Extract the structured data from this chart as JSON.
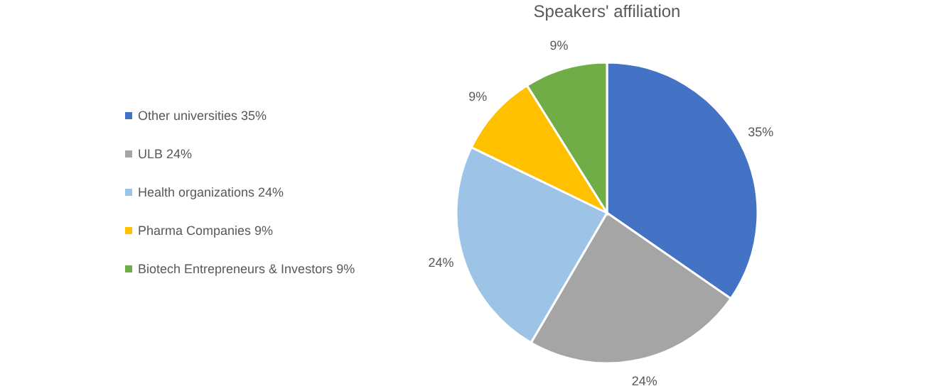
{
  "chart_data": {
    "type": "pie",
    "title": "Speakers' affiliation",
    "categories": [
      "Other universities 35%",
      "ULB  24%",
      "Health organizations  24%",
      "Pharma Companies  9%",
      "Biotech Entrepreneurs & Investors  9%"
    ],
    "values": [
      35,
      24,
      24,
      9,
      9
    ],
    "colors": [
      "#4472c4",
      "#a5a5a5",
      "#9dc3e6",
      "#ffc000",
      "#70ad47"
    ],
    "value_labels": [
      "35%",
      "24%",
      "24%",
      "9%",
      "9%"
    ],
    "legend": "left"
  }
}
